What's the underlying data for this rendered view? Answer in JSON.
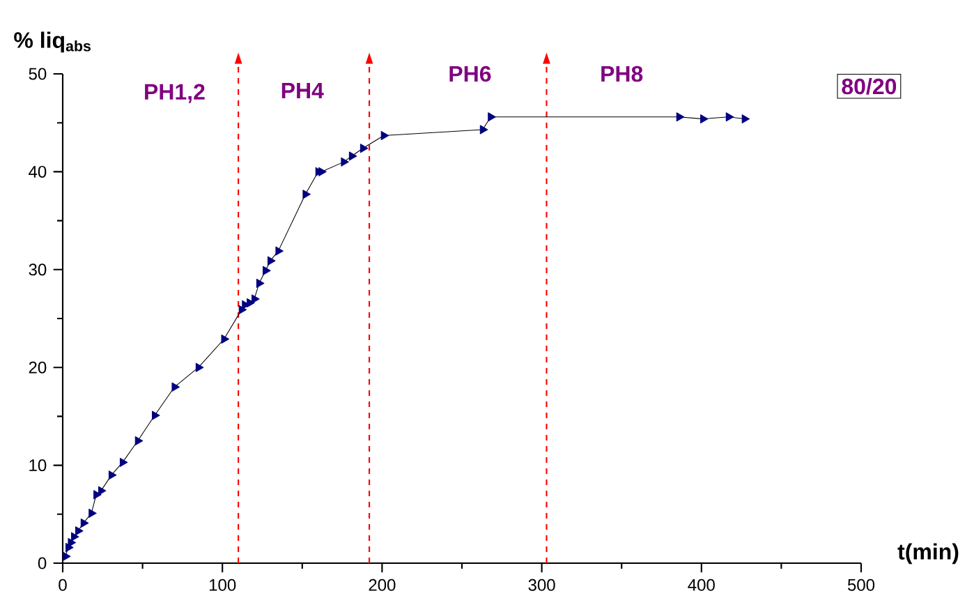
{
  "chart_data": {
    "type": "line",
    "xlabel": "t(min)",
    "ylabel": "% liq$_{abs}$",
    "x": [
      1.7,
      3.5,
      5,
      7,
      9.6,
      13,
      18,
      21,
      24,
      30.5,
      37.5,
      47,
      57.6,
      70,
      85,
      101,
      112,
      114,
      117,
      120,
      123,
      127,
      130,
      135,
      152,
      160,
      162,
      176,
      181,
      188,
      201,
      263,
      268,
      386,
      401,
      417,
      427
    ],
    "series": [
      {
        "color": "#000080",
        "values": [
          0.7,
          1.6,
          2.1,
          2.7,
          3.3,
          4.1,
          5.1,
          7,
          7.4,
          9,
          10.3,
          12.5,
          15.1,
          18,
          20,
          22.9,
          25.9,
          26.4,
          26.6,
          27,
          28.6,
          29.9,
          30.9,
          31.9,
          37.7,
          40,
          40,
          41,
          41.6,
          42.4,
          43.7,
          44.3,
          45.6,
          45.6,
          45.4,
          45.6,
          45.4
        ]
      }
    ],
    "marker": "triangle",
    "line_style": "solid",
    "xlim": [
      0,
      500
    ],
    "ylim": [
      0,
      50
    ],
    "xticks": [
      0,
      100,
      200,
      300,
      400,
      500
    ],
    "yticks": [
      0,
      10,
      20,
      30,
      40,
      50
    ],
    "ref_lines": [
      {
        "axis": "x",
        "value": 110,
        "color": "#ff0000",
        "line_style": "dashed"
      },
      {
        "axis": "x",
        "value": 192,
        "color": "#ff0000",
        "line_style": "dashed"
      },
      {
        "axis": "x",
        "value": 303,
        "color": "#ff0000",
        "line_style": "dashed"
      }
    ],
    "annotations": [
      "PH1,2",
      "PH4",
      "PH6",
      "PH8",
      "80/20"
    ],
    "grid": false
  }
}
